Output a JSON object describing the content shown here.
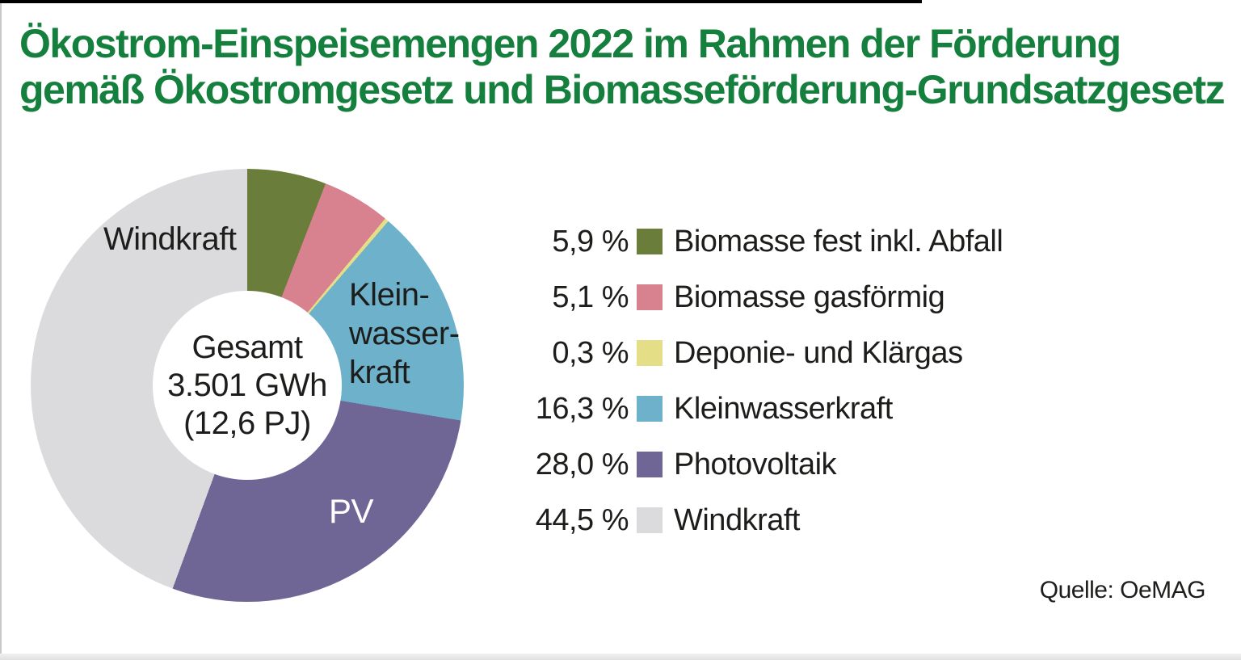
{
  "header": {
    "title": "Ökostrom-Einspeisemengen 2022 im Rahmen der Förderung\ngemäß Ökostromgesetz und Biomasseförderung-Grundsatzgesetz",
    "title_color": "#157f3d"
  },
  "footer": {
    "source": "Quelle: OeMAG"
  },
  "chart_data": {
    "type": "pie",
    "subtype": "donut",
    "title": "Ökostrom-Einspeisemengen 2022 im Rahmen der Förderung gemäß Ökostromgesetz und Biomasseförderung-Grundsatzgesetz",
    "unit": "%",
    "start_angle_deg": 0,
    "direction": "clockwise",
    "legend_position": "right",
    "center_label": "Gesamt\n3.501 GWh\n(12,6 PJ)",
    "total_gwh": 3501,
    "total_pj": 12.6,
    "segments": [
      {
        "label": "Biomasse fest inkl. Abfall",
        "pct": 5.9,
        "pct_label": "5,9 %",
        "color": "#6b7d3a"
      },
      {
        "label": "Biomasse gasförmig",
        "pct": 5.1,
        "pct_label": "5,1 %",
        "color": "#d8818f"
      },
      {
        "label": "Deponie- und Klärgas",
        "pct": 0.3,
        "pct_label": "0,3 %",
        "color": "#e4de86"
      },
      {
        "label": "Kleinwasserkraft",
        "pct": 16.3,
        "pct_label": "16,3 %",
        "color": "#6db1cb"
      },
      {
        "label": "Photovoltaik",
        "pct": 28.0,
        "pct_label": "28,0 %",
        "color": "#6f6696"
      },
      {
        "label": "Windkraft",
        "pct": 44.5,
        "pct_label": "44,5 %",
        "color": "#dbdbde"
      }
    ],
    "slice_labels": {
      "windkraft": "Windkraft",
      "kleinwasserkraft": "Klein-\nwasser-\nkraft",
      "pv": "PV"
    }
  }
}
